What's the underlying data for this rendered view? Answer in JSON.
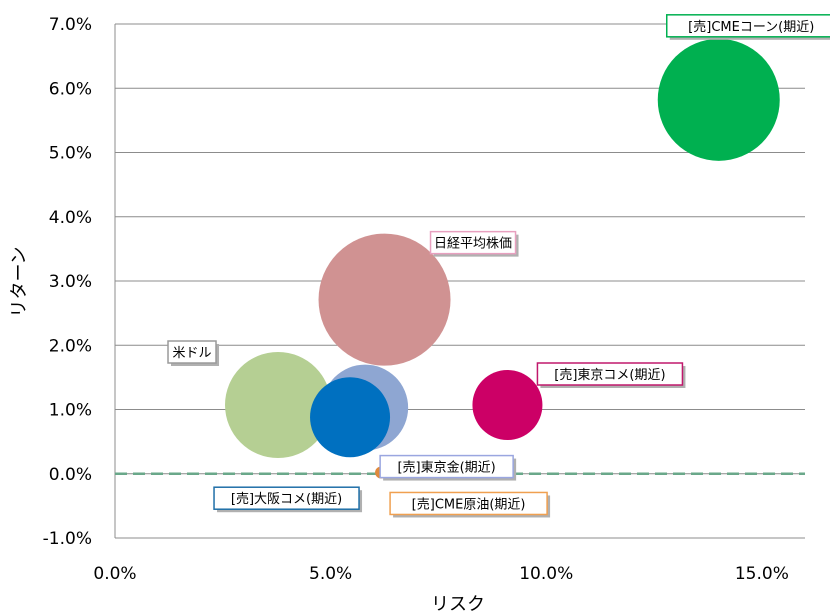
{
  "chart_data": {
    "type": "bubble",
    "xlabel": "リスク",
    "ylabel": "リターン",
    "xlim": [
      0,
      0.16
    ],
    "ylim": [
      -0.01,
      0.07
    ],
    "x_ticks": [
      0,
      0.05,
      0.1,
      0.15
    ],
    "x_tick_labels": [
      "0.0%",
      "5.0%",
      "10.0%",
      "15.0%"
    ],
    "y_ticks": [
      -0.01,
      0,
      0.01,
      0.02,
      0.03,
      0.04,
      0.05,
      0.06,
      0.07
    ],
    "y_tick_labels": [
      "-1.0%",
      "0.0%",
      "1.0%",
      "2.0%",
      "3.0%",
      "4.0%",
      "5.0%",
      "6.0%",
      "7.0%"
    ],
    "grid": true,
    "zero_line": {
      "value": 0,
      "color": "#6aa88a",
      "dashed": true
    },
    "series": [
      {
        "name": "[売]CMEコーン(期近)",
        "x": 0.14,
        "y": 0.0582,
        "size": 61,
        "color": "#00b050",
        "label_color": "#00b050"
      },
      {
        "name": "日経平均株価",
        "x": 0.0625,
        "y": 0.0271,
        "size": 66,
        "color": "#d09292",
        "label_color": "#e8a0bf"
      },
      {
        "name": "[売]東京コメ(期近)",
        "x": 0.091,
        "y": 0.0107,
        "size": 35,
        "color": "#cc0066",
        "label_color": "#c0186c"
      },
      {
        "name": "米ドル",
        "x": 0.0378,
        "y": 0.0107,
        "size": 53,
        "color": "#b5cf93",
        "label_color": "#9a9a9a"
      },
      {
        "name": "[売]東京金(期近)",
        "x": 0.058,
        "y": 0.0103,
        "size": 43,
        "color": "#8ea6d2",
        "label_color": "#9aa6e0"
      },
      {
        "name": "[売]大阪コメ(期近)",
        "x": 0.0545,
        "y": 0.0088,
        "size": 40,
        "color": "#0070c0",
        "label_color": "#1f6fa8"
      },
      {
        "name": "[売]CME原油(期近)",
        "x": 0.0617,
        "y": 0.0002,
        "size": 6,
        "color": "#e08a3c",
        "label_color": "#f0a050"
      }
    ]
  }
}
